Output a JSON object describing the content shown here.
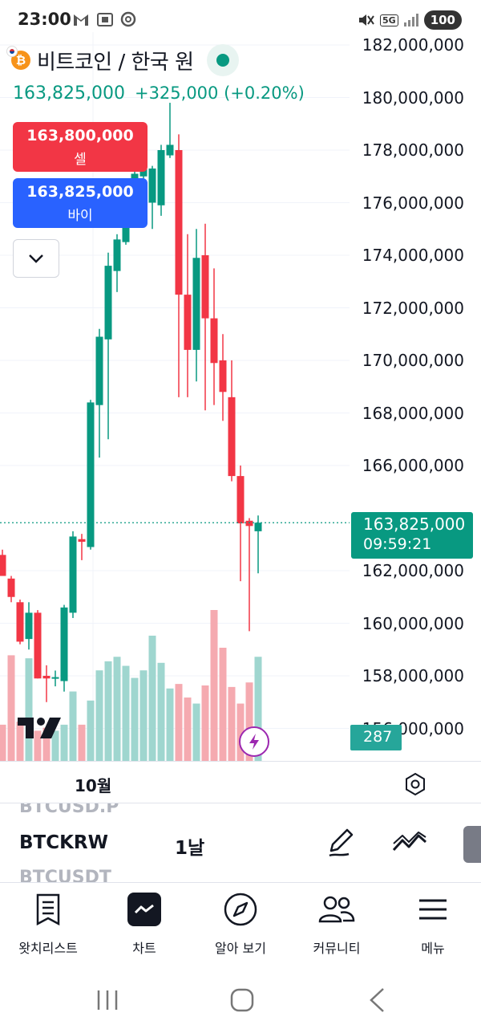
{
  "status_bar": {
    "time": "23:00",
    "battery": "100",
    "network": "5G"
  },
  "header": {
    "coin_glyph": "₿",
    "title": "비트코인 / 한국 원",
    "last_price": "163,825,000",
    "change": "+325,000 (+0.20%)"
  },
  "trade": {
    "sell_price": "163,800,000",
    "sell_label": "셀",
    "buy_price": "163,825,000",
    "buy_label": "바이"
  },
  "price_scale": {
    "labels": [
      "182,000,000",
      "180,000,000",
      "178,000,000",
      "176,000,000",
      "174,000,000",
      "172,000,000",
      "170,000,000",
      "168,000,000",
      "166,000,000",
      "162,000,000",
      "160,000,000",
      "158,000,000",
      "156,000,000"
    ],
    "current_price": "163,825,000",
    "countdown": "09:59:21",
    "volume": "287"
  },
  "x_axis": {
    "label": "10월"
  },
  "symbol_bar": {
    "prev_symbol": "BTCUSD.P",
    "current_symbol": "BTCKRW",
    "next_symbol": "BTCUSDT",
    "interval": "1날"
  },
  "nav": [
    {
      "label": "왓치리스트",
      "icon": "watchlist-icon"
    },
    {
      "label": "차트",
      "icon": "chart-icon"
    },
    {
      "label": "알아 보기",
      "icon": "compass-icon"
    },
    {
      "label": "커뮤니티",
      "icon": "community-icon"
    },
    {
      "label": "메뉴",
      "icon": "menu-icon"
    }
  ],
  "colors": {
    "up": "#089981",
    "down": "#f23645",
    "up_volume": "#9fd6cf",
    "down_volume": "#f5aab0",
    "buy": "#2962ff"
  },
  "chart_data": {
    "type": "candlestick",
    "interval": "1날",
    "x_tick": "10월",
    "ylim": [
      155600000,
      183000000
    ],
    "candles": [
      {
        "o": 162600000,
        "h": 162800000,
        "l": 162000000,
        "c": 161800000
      },
      {
        "o": 161700000,
        "h": 161800000,
        "l": 160800000,
        "c": 161000000
      },
      {
        "o": 160800000,
        "h": 160900000,
        "l": 159200000,
        "c": 159300000
      },
      {
        "o": 159400000,
        "h": 160800000,
        "l": 159000000,
        "c": 160400000
      },
      {
        "o": 160400000,
        "h": 160500000,
        "l": 157900000,
        "c": 157900000
      },
      {
        "o": 158000000,
        "h": 158400000,
        "l": 157000000,
        "c": 157900000
      },
      {
        "o": 157900000,
        "h": 158200000,
        "l": 157600000,
        "c": 157950000
      },
      {
        "o": 157800000,
        "h": 160700000,
        "l": 157400000,
        "c": 160600000
      },
      {
        "o": 160400000,
        "h": 163500000,
        "l": 160200000,
        "c": 163300000
      },
      {
        "o": 163200000,
        "h": 163400000,
        "l": 162400000,
        "c": 163100000
      },
      {
        "o": 162900000,
        "h": 168500000,
        "l": 162800000,
        "c": 168400000
      },
      {
        "o": 168300000,
        "h": 171200000,
        "l": 166300000,
        "c": 170900000
      },
      {
        "o": 170800000,
        "h": 174100000,
        "l": 167000000,
        "c": 173600000
      },
      {
        "o": 173400000,
        "h": 174800000,
        "l": 172600000,
        "c": 174600000
      },
      {
        "o": 174500000,
        "h": 176800000,
        "l": 174400000,
        "c": 176600000
      },
      {
        "o": 176500000,
        "h": 177300000,
        "l": 175900000,
        "c": 177100000
      },
      {
        "o": 177000000,
        "h": 177600000,
        "l": 176400000,
        "c": 177500000
      },
      {
        "o": 176000000,
        "h": 177400000,
        "l": 175000000,
        "c": 177300000
      },
      {
        "o": 175900000,
        "h": 178200000,
        "l": 175500000,
        "c": 178000000
      },
      {
        "o": 177800000,
        "h": 179800000,
        "l": 177700000,
        "c": 178200000
      },
      {
        "o": 178000000,
        "h": 178600000,
        "l": 168600000,
        "c": 172500000
      },
      {
        "o": 172500000,
        "h": 174800000,
        "l": 168600000,
        "c": 170400000
      },
      {
        "o": 170400000,
        "h": 175000000,
        "l": 169200000,
        "c": 173900000
      },
      {
        "o": 174000000,
        "h": 175200000,
        "l": 168100000,
        "c": 171600000
      },
      {
        "o": 171600000,
        "h": 173500000,
        "l": 168300000,
        "c": 169900000
      },
      {
        "o": 170000000,
        "h": 171000000,
        "l": 167700000,
        "c": 168800000
      },
      {
        "o": 168600000,
        "h": 170000000,
        "l": 165400000,
        "c": 165600000
      },
      {
        "o": 165600000,
        "h": 166000000,
        "l": 161600000,
        "c": 163800000
      },
      {
        "o": 163900000,
        "h": 164000000,
        "l": 159700000,
        "c": 163700000
      },
      {
        "o": 163500000,
        "h": 164100000,
        "l": 161900000,
        "c": 163825000
      }
    ],
    "volume_heights": [
      0.24,
      0.7,
      0.26,
      0.68,
      0.2,
      0.22,
      0.2,
      0.24,
      0.46,
      0.24,
      0.4,
      0.6,
      0.66,
      0.69,
      0.63,
      0.55,
      0.6,
      0.83,
      0.65,
      0.48,
      0.51,
      0.42,
      0.38,
      0.5,
      1.0,
      0.75,
      0.49,
      0.38,
      0.52,
      0.69
    ]
  }
}
